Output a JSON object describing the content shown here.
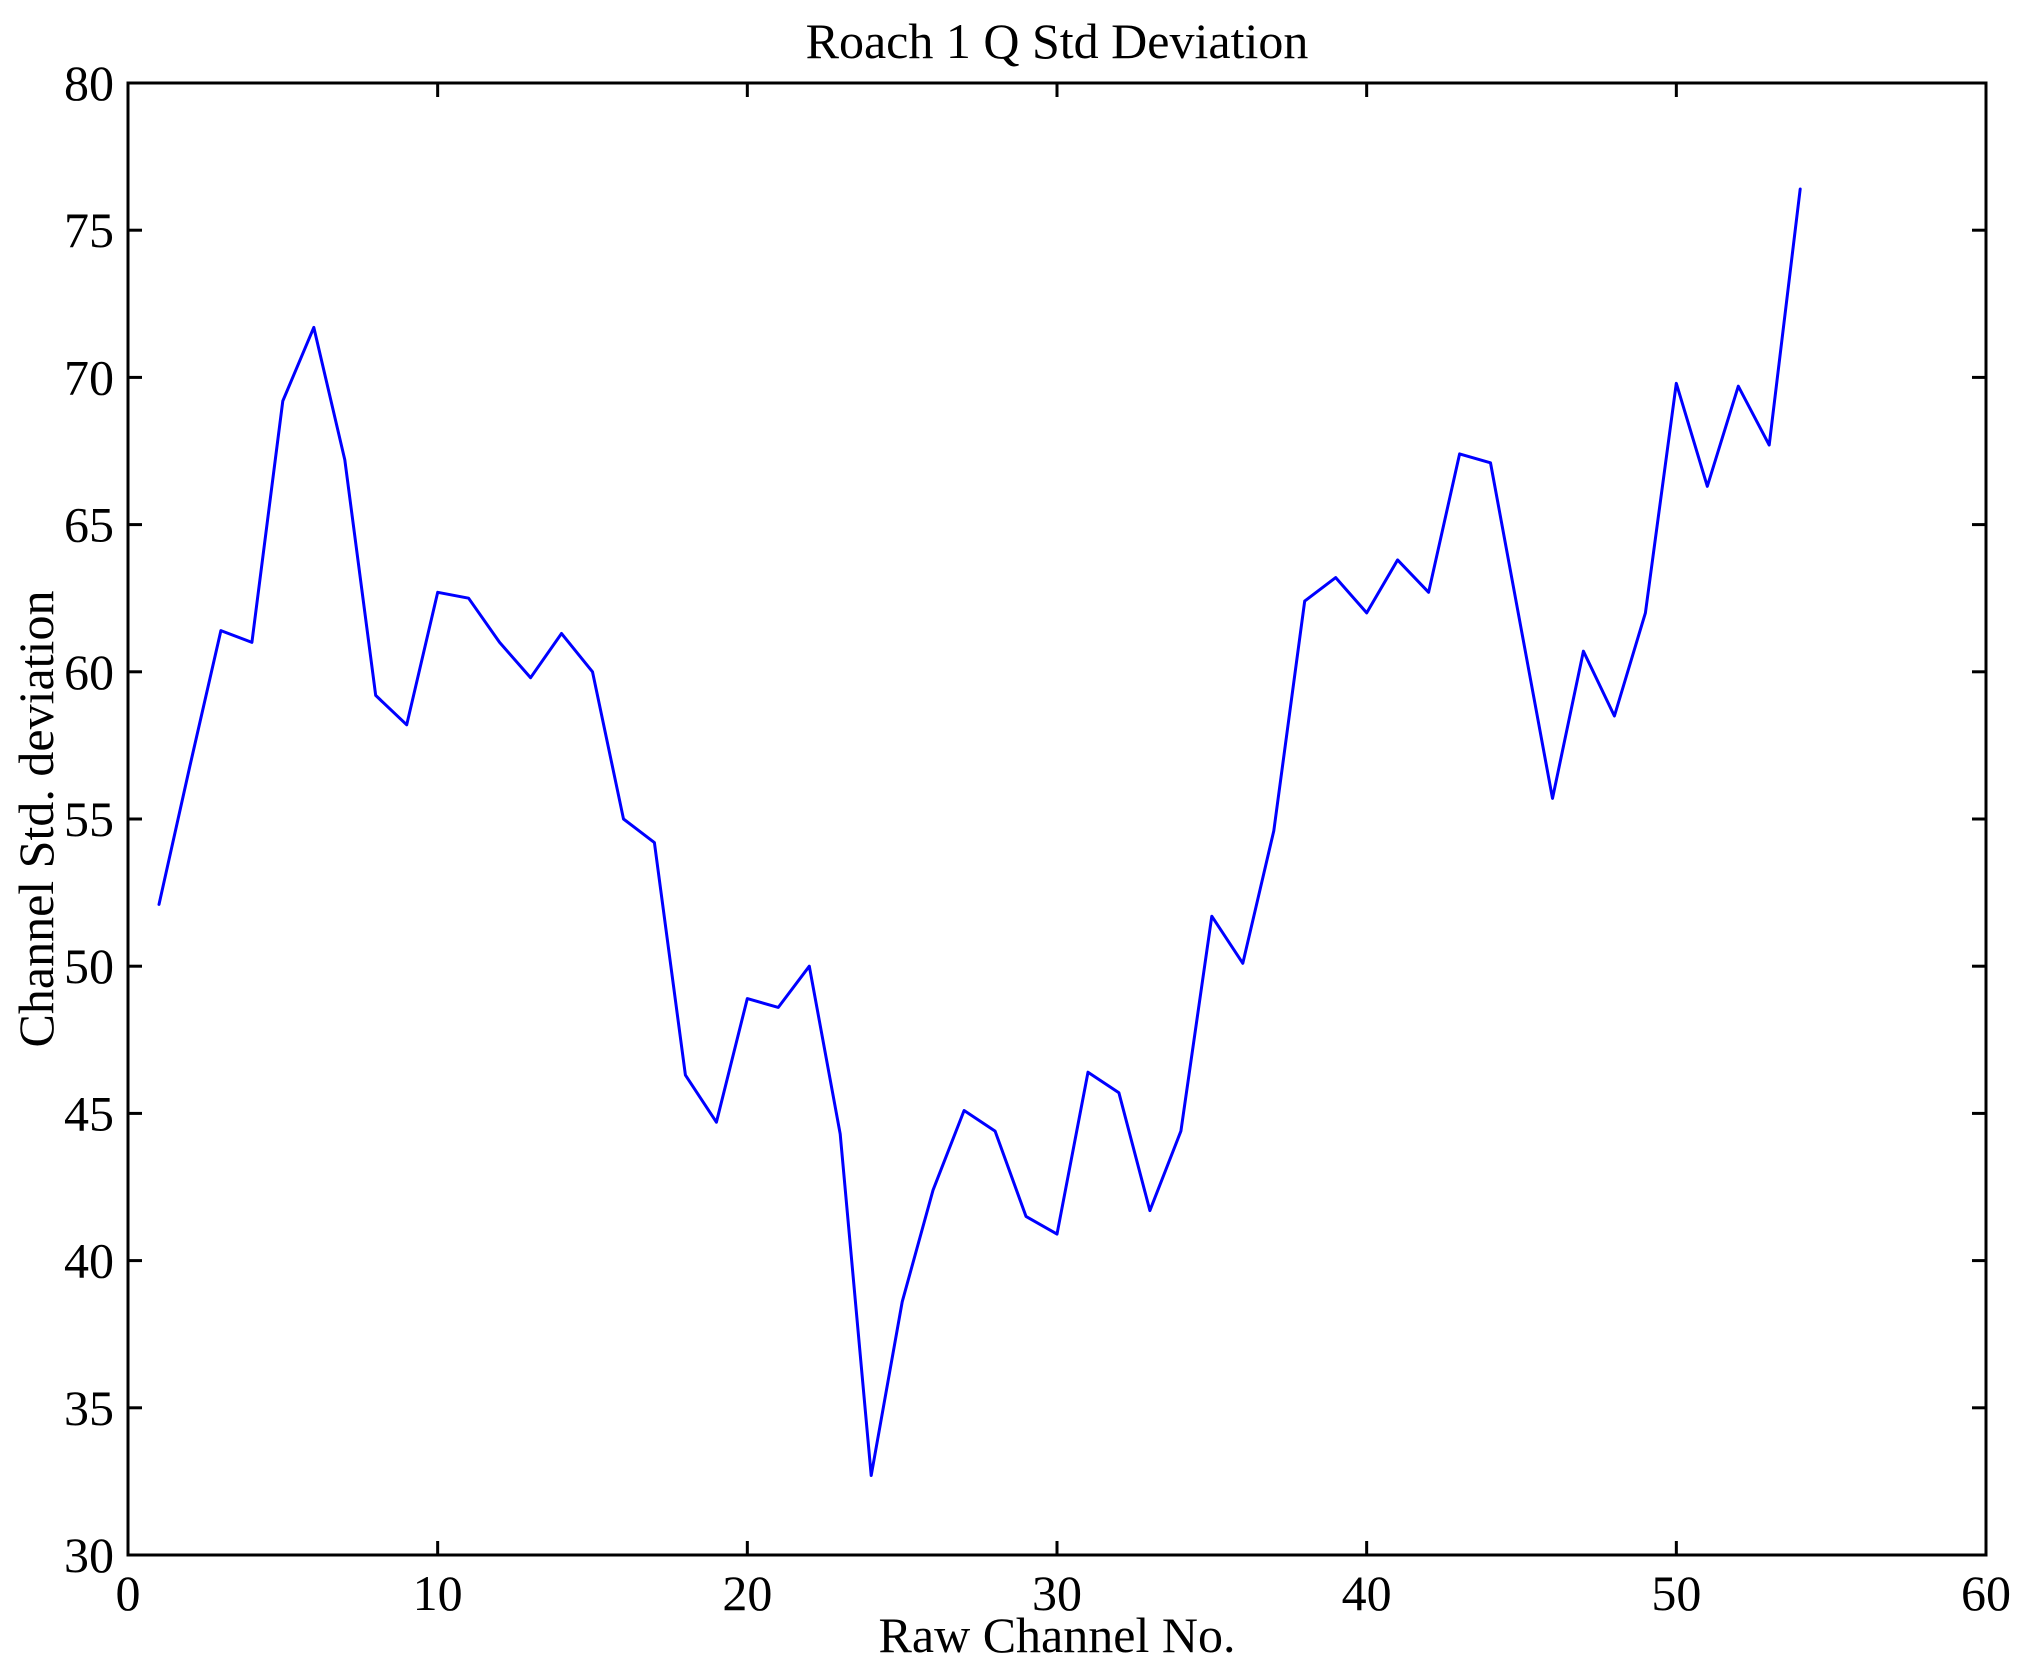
{
  "figure": {
    "background": "#ffffff",
    "axis_color": "#000000"
  },
  "chart_data": {
    "type": "line",
    "title": "Roach 1 Q Std Deviation",
    "xlabel": "Raw Channel No.",
    "ylabel": "Channel Std. deviation",
    "xlim": [
      0,
      60
    ],
    "ylim": [
      30,
      80
    ],
    "xticks": [
      0,
      10,
      20,
      30,
      40,
      50,
      60
    ],
    "yticks": [
      30,
      35,
      40,
      45,
      50,
      55,
      60,
      65,
      70,
      75,
      80
    ],
    "grid": false,
    "legend": null,
    "line_color": "#0000ff",
    "x": [
      1,
      2,
      3,
      4,
      5,
      6,
      7,
      8,
      9,
      10,
      11,
      12,
      13,
      14,
      15,
      16,
      17,
      18,
      19,
      20,
      21,
      22,
      23,
      24,
      25,
      26,
      27,
      28,
      29,
      30,
      31,
      32,
      33,
      34,
      35,
      36,
      37,
      38,
      39,
      40,
      41,
      42,
      43,
      44,
      45,
      46,
      47,
      48,
      49,
      50,
      51,
      52,
      53,
      54
    ],
    "values": [
      52.1,
      56.8,
      61.4,
      61.0,
      69.2,
      71.7,
      67.2,
      59.2,
      58.2,
      62.7,
      62.5,
      61.0,
      59.8,
      61.3,
      60.0,
      55.0,
      54.2,
      46.3,
      44.7,
      48.9,
      48.6,
      50.0,
      44.3,
      32.7,
      38.6,
      42.4,
      45.1,
      44.4,
      41.5,
      40.9,
      46.4,
      45.7,
      41.7,
      44.4,
      51.7,
      50.1,
      54.6,
      62.4,
      63.2,
      62.0,
      63.8,
      62.7,
      67.4,
      67.1,
      61.4,
      55.7,
      60.7,
      58.5,
      62.0,
      69.8,
      66.3,
      69.7,
      67.7,
      76.4
    ]
  }
}
